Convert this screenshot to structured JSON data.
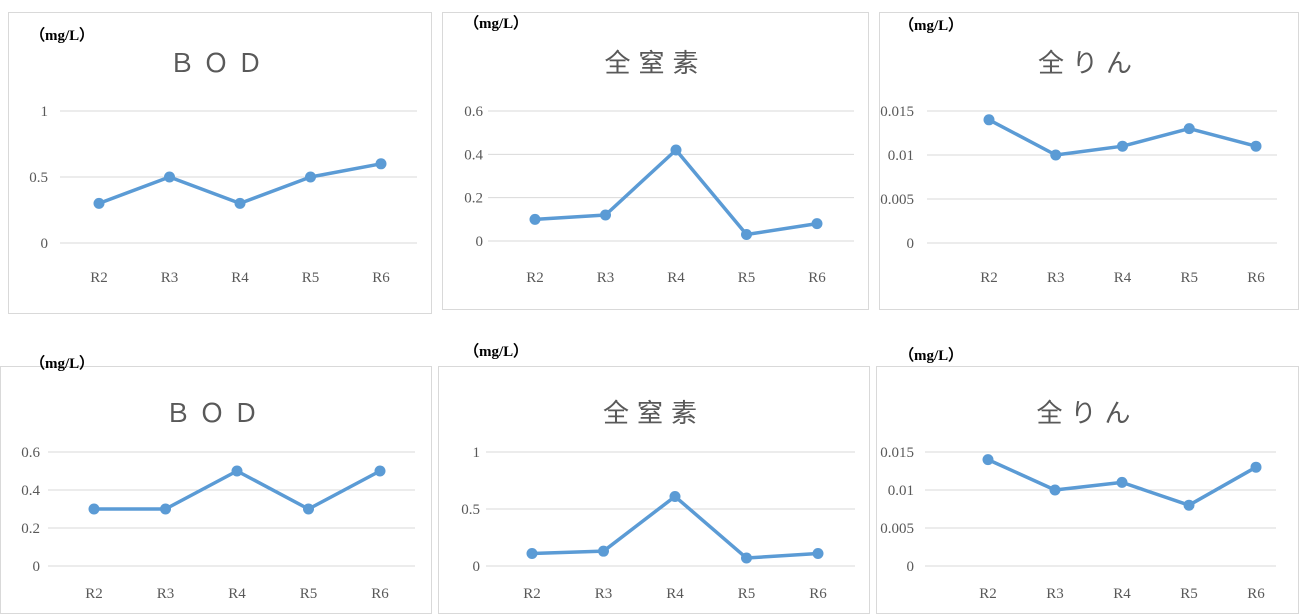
{
  "unit_label": "（mg/L）",
  "colors": {
    "series": "#5b9bd5",
    "grid": "#d9d9d9",
    "text": "#595959"
  },
  "chart_data": [
    {
      "type": "line",
      "title": "ＢＯＤ",
      "categories": [
        "R2",
        "R3",
        "R4",
        "R5",
        "R6"
      ],
      "yticks": [
        "0",
        "0.5",
        "1"
      ],
      "ylim": [
        0,
        1
      ],
      "series": [
        {
          "values": [
            0.3,
            0.5,
            0.3,
            0.5,
            0.6
          ]
        }
      ]
    },
    {
      "type": "line",
      "title": "全窒素",
      "categories": [
        "R2",
        "R3",
        "R4",
        "R5",
        "R6"
      ],
      "yticks": [
        "0",
        "0.2",
        "0.4",
        "0.6"
      ],
      "ylim": [
        0,
        0.6
      ],
      "series": [
        {
          "values": [
            0.1,
            0.12,
            0.42,
            0.03,
            0.08
          ]
        }
      ]
    },
    {
      "type": "line",
      "title": "全りん",
      "categories": [
        "R2",
        "R3",
        "R4",
        "R5",
        "R6"
      ],
      "yticks": [
        "0",
        "0.005",
        "0.01",
        "0.015"
      ],
      "ylim": [
        0,
        0.015
      ],
      "series": [
        {
          "values": [
            0.014,
            0.01,
            0.011,
            0.013,
            0.011
          ]
        }
      ]
    },
    {
      "type": "line",
      "title": "ＢＯＤ",
      "categories": [
        "R2",
        "R3",
        "R4",
        "R5",
        "R6"
      ],
      "yticks": [
        "0",
        "0.2",
        "0.4",
        "0.6"
      ],
      "ylim": [
        0,
        0.6
      ],
      "series": [
        {
          "values": [
            0.3,
            0.3,
            0.5,
            0.3,
            0.5
          ]
        }
      ]
    },
    {
      "type": "line",
      "title": "全窒素",
      "categories": [
        "R2",
        "R3",
        "R4",
        "R5",
        "R6"
      ],
      "yticks": [
        "0",
        "0.5",
        "1"
      ],
      "ylim": [
        0,
        1
      ],
      "series": [
        {
          "values": [
            0.11,
            0.13,
            0.61,
            0.07,
            0.11
          ]
        }
      ]
    },
    {
      "type": "line",
      "title": "全りん",
      "categories": [
        "R2",
        "R3",
        "R4",
        "R5",
        "R6"
      ],
      "yticks": [
        "0",
        "0.005",
        "0.01",
        "0.015"
      ],
      "ylim": [
        0,
        0.015
      ],
      "series": [
        {
          "values": [
            0.014,
            0.01,
            0.011,
            0.008,
            0.013
          ]
        }
      ]
    }
  ]
}
